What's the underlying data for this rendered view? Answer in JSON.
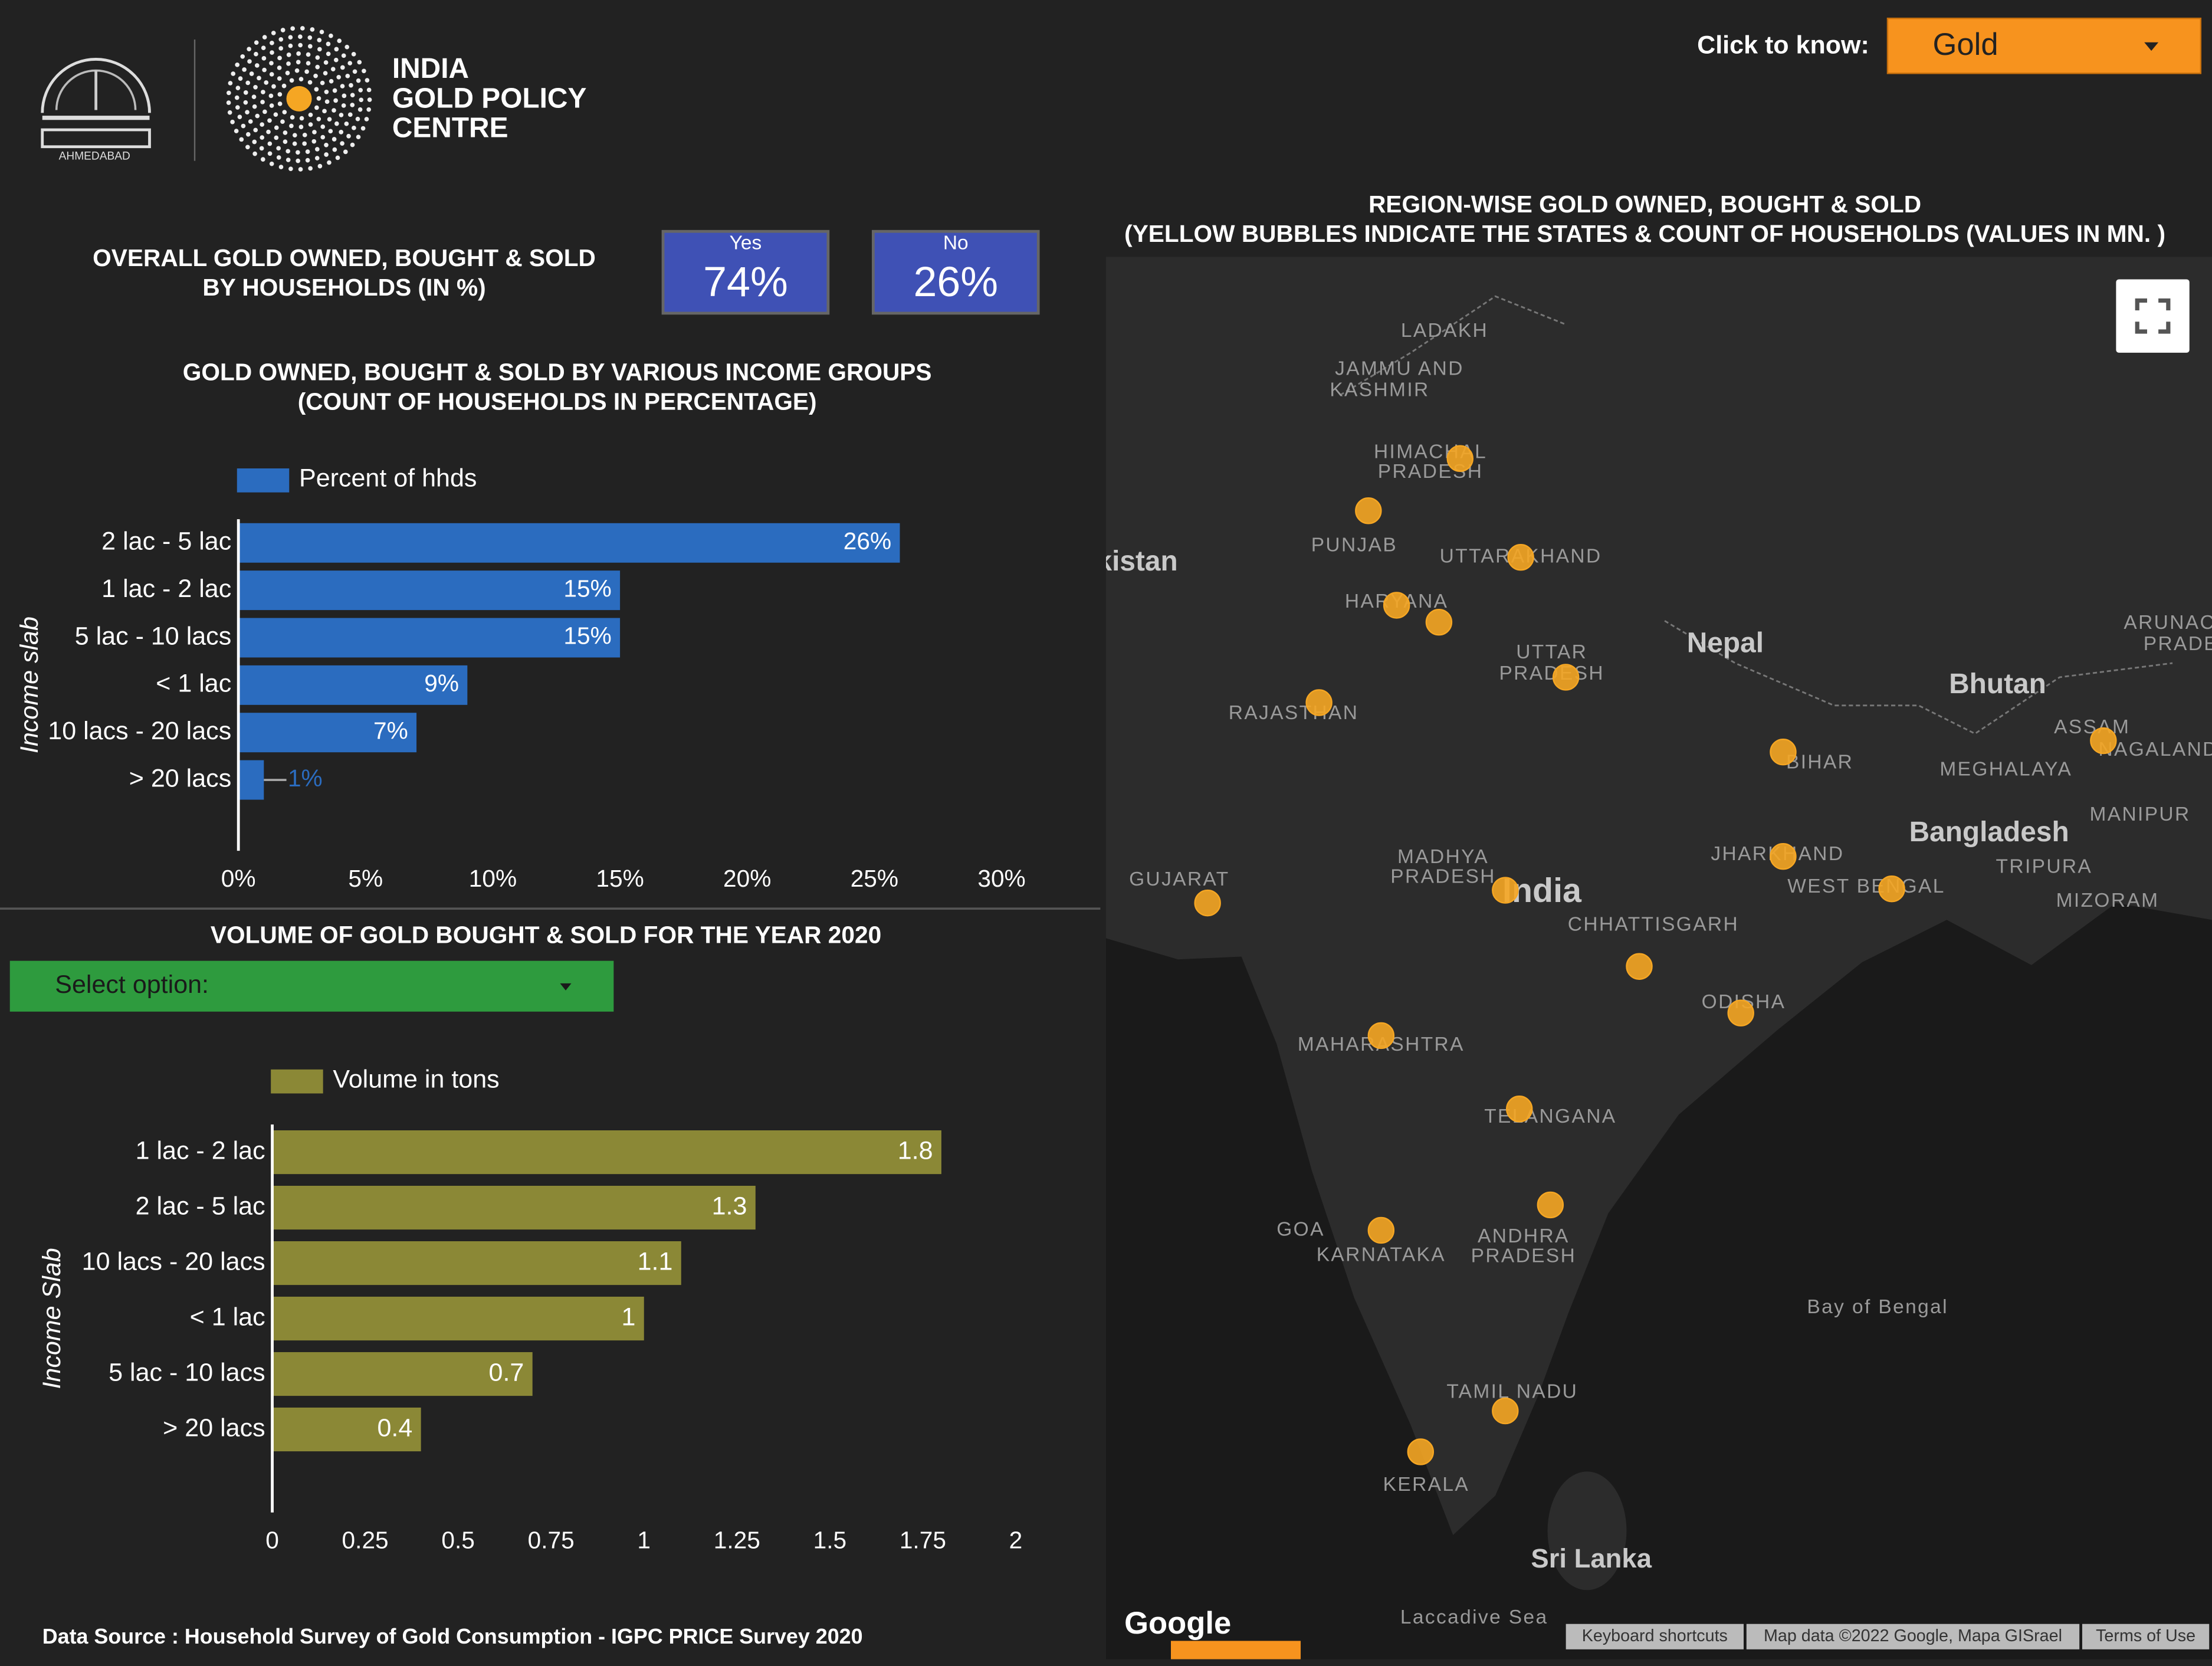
{
  "header": {
    "logo_lines": [
      "INDIA",
      "GOLD POLICY",
      "CENTRE"
    ],
    "institute": "AHMEDABAD",
    "selector_label": "Click to know:",
    "selector_value": "Gold"
  },
  "kpi": {
    "title": [
      "OVERALL GOLD OWNED, BOUGHT & SOLD",
      "BY HOUSEHOLDS (IN %)"
    ],
    "items": [
      {
        "label": "Yes",
        "value": "74%"
      },
      {
        "label": "No",
        "value": "26%"
      }
    ]
  },
  "chart_data": [
    {
      "type": "bar",
      "orientation": "horizontal",
      "title": [
        "GOLD OWNED, BOUGHT & SOLD BY VARIOUS INCOME GROUPS",
        "(COUNT OF HOUSEHOLDS IN PERCENTAGE)"
      ],
      "y_label": "Income slab",
      "categories": [
        "2 lac - 5 lac",
        "1 lac - 2 lac",
        "5 lac - 10 lacs",
        "< 1 lac",
        "10 lacs - 20 lacs",
        "> 20 lacs"
      ],
      "series": [
        {
          "name": "Percent of hhds",
          "color": "#2b6cbf",
          "values": [
            26,
            15,
            15,
            9,
            7,
            1
          ],
          "value_labels": [
            "26%",
            "15%",
            "15%",
            "9%",
            "7%",
            "1%"
          ]
        }
      ],
      "xlim": [
        0,
        30
      ],
      "xticks": [
        {
          "value": 0,
          "label": "0%"
        },
        {
          "value": 5,
          "label": "5%"
        },
        {
          "value": 10,
          "label": "10%"
        },
        {
          "value": 15,
          "label": "15%"
        },
        {
          "value": 20,
          "label": "20%"
        },
        {
          "value": 25,
          "label": "25%"
        },
        {
          "value": 30,
          "label": "30%"
        }
      ]
    },
    {
      "type": "bar",
      "orientation": "horizontal",
      "title": [
        "VOLUME OF GOLD BOUGHT & SOLD FOR THE YEAR 2020"
      ],
      "filter": "Select option:",
      "y_label": "Income Slab",
      "categories": [
        "1 lac - 2 lac",
        "2 lac - 5 lac",
        "10 lacs - 20 lacs",
        "< 1 lac",
        "5 lac - 10 lacs",
        "> 20 lacs"
      ],
      "series": [
        {
          "name": "Volume in tons",
          "color": "#8b8836",
          "values": [
            1.8,
            1.3,
            1.1,
            1,
            0.7,
            0.4
          ]
        }
      ],
      "xlim": [
        0,
        2
      ],
      "xticks": [
        0,
        0.25,
        0.5,
        0.75,
        1,
        1.25,
        1.5,
        1.75,
        2
      ]
    }
  ],
  "map": {
    "title": [
      "REGION-WISE GOLD OWNED, BOUGHT & SOLD",
      "(YELLOW BUBBLES INDICATE THE STATES & COUNT OF HOUSEHOLDS (VALUES IN MN. )"
    ],
    "labels": [
      "LADAKH",
      "JAMMU AND",
      "KASHMIR",
      "HIMACHAL",
      "PRADESH",
      "PUNJAB",
      "UTTARAKHAND",
      "HARYANA",
      "UTTAR",
      "PRADESH",
      "RAJASTHAN",
      "Nepal",
      "Bhutan",
      "BIHAR",
      "ASSAM",
      "NAGALAND",
      "MEGHALAYA",
      "MANIPUR",
      "Bangladesh",
      "JHARKHAND",
      "WEST BENGAL",
      "TRIPURA",
      "MIZORAM",
      "MADHYA",
      "PRADESH",
      "India",
      "CHHATTISGARH",
      "GUJARAT",
      "ODISHA",
      "MAHARASHTRA",
      "TELANGANA",
      "GOA",
      "KARNATAKA",
      "ANDHRA",
      "PRADESH",
      "Bay of Bengal",
      "TAMIL NADU",
      "KERALA",
      "Sri Lanka",
      "Laccadive Sea",
      "kistan",
      "ARUNAC",
      "PRADE"
    ],
    "logo": "Google",
    "attribution": [
      "Keyboard shortcuts",
      "Map data ©2022 Google, Mapa GISrael",
      "Terms of Use"
    ]
  },
  "footer": "Data Source : Household Survey of Gold Consumption -  IGPC PRICE Survey 2020"
}
